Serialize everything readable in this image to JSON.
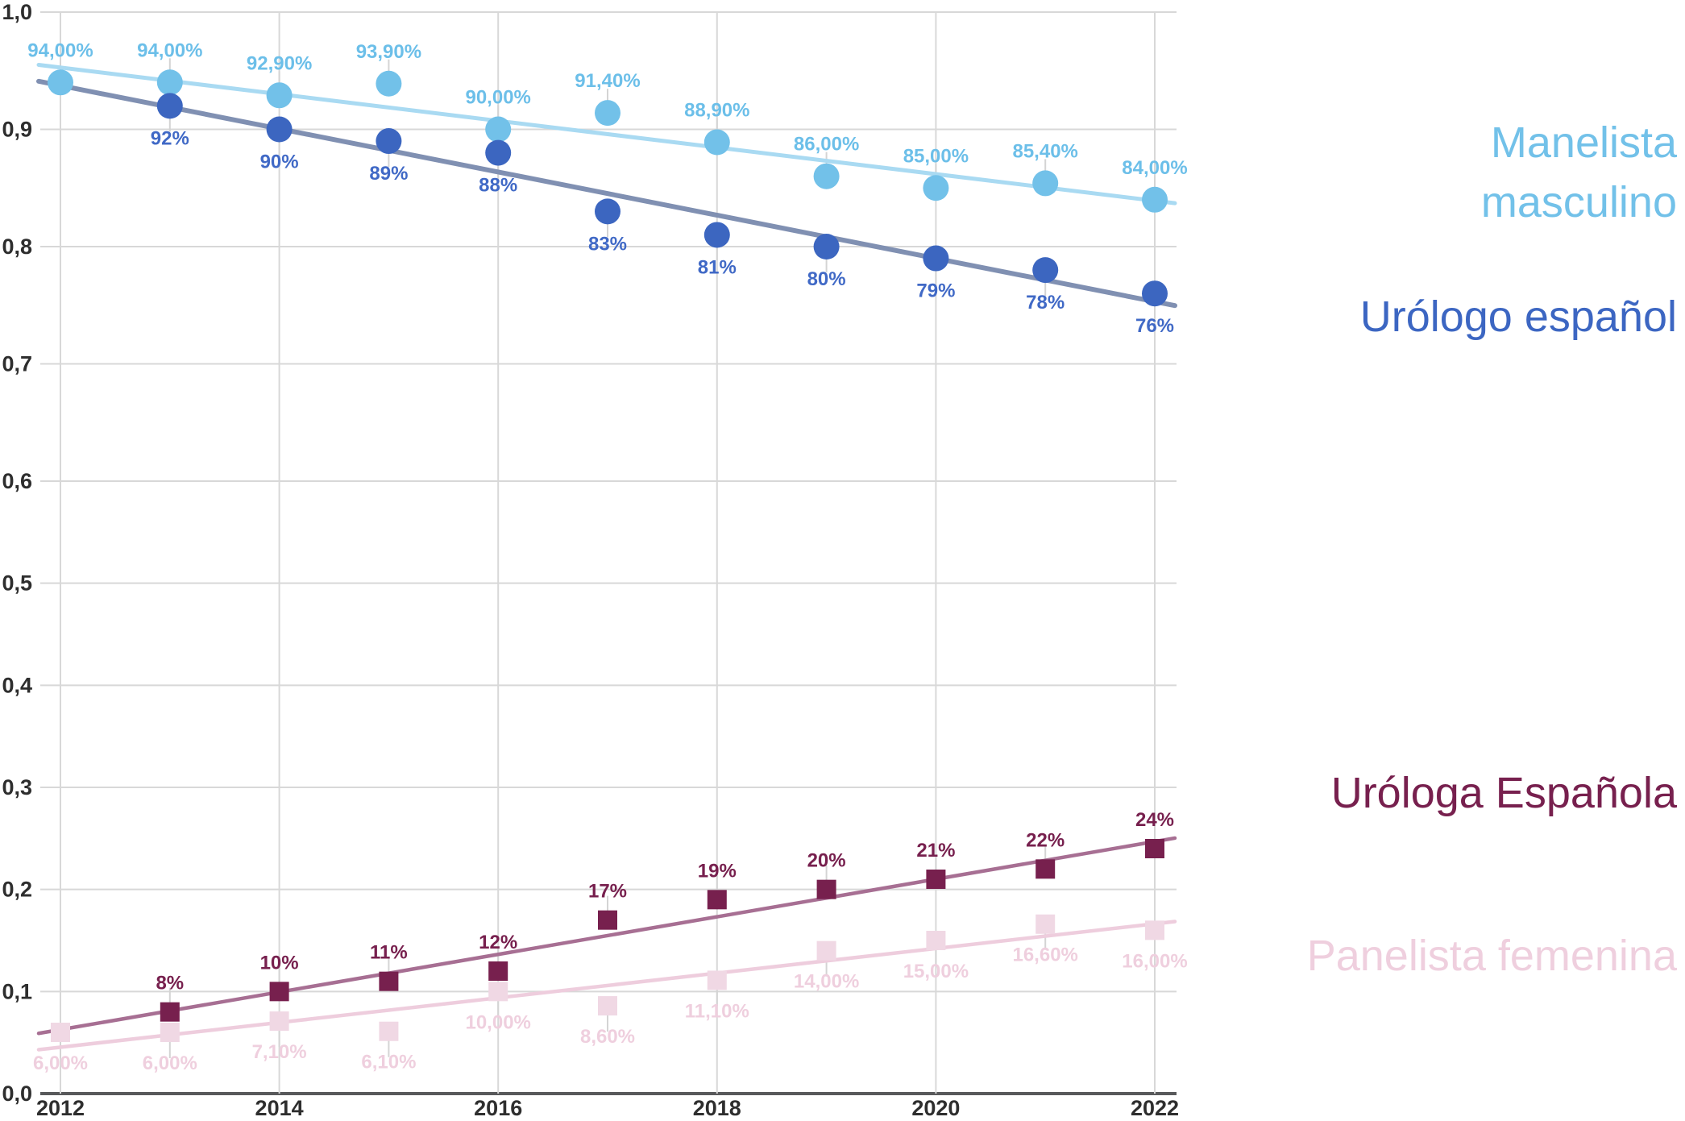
{
  "chart_data": {
    "type": "scatter",
    "title": "",
    "xlabel": "",
    "ylabel": "",
    "x": [
      2012,
      2013,
      2014,
      2015,
      2016,
      2017,
      2018,
      2019,
      2020,
      2021,
      2022
    ],
    "xlim": [
      2011.8,
      2022.2
    ],
    "ylim": [
      0,
      1
    ],
    "grid": true,
    "x_tick_years": [
      2012,
      2014,
      2016,
      2018,
      2020,
      2022
    ],
    "x_tick_labels": [
      "2012",
      "2014",
      "2016",
      "2018",
      "2020",
      "2022"
    ],
    "y_tick_values": [
      0,
      0.1,
      0.2,
      0.3,
      0.4,
      0.5,
      0.6,
      0.7,
      0.8,
      0.9,
      1.0
    ],
    "y_tick_labels": [
      "0,0",
      "0,1",
      "0,2",
      "0,3",
      "0,4",
      "0,5",
      "0,6",
      "0,7",
      "0,8",
      "0,9",
      "1,0"
    ],
    "series": [
      {
        "id": "manelista-masculino",
        "name": "Manelista masculino",
        "marker": "circle",
        "label_position": "above",
        "values_pct": [
          94.0,
          94.0,
          92.9,
          93.9,
          90.0,
          91.4,
          88.9,
          86.0,
          85.0,
          85.4,
          84.0
        ],
        "point_labels": [
          "94,00%",
          "94,00%",
          "92,90%",
          "93,90%",
          "90,00%",
          "91,40%",
          "88,90%",
          "86,00%",
          "85,00%",
          "85,40%",
          "84,00%"
        ],
        "color": "#72c1e9",
        "label_color": "#6cbfe9",
        "trend_color": "#a9daf2",
        "trendline": true
      },
      {
        "id": "urologo-espanol",
        "name": "Urólogo español",
        "marker": "circle",
        "label_position": "below",
        "values_pct": [
          null,
          92,
          90,
          89,
          88,
          83,
          81,
          80,
          79,
          78,
          76
        ],
        "point_labels": [
          null,
          "92%",
          "90%",
          "89%",
          "88%",
          "83%",
          "81%",
          "80%",
          "79%",
          "78%",
          "76%"
        ],
        "color": "#3c66c0",
        "label_color": "#4069c6",
        "trend_color": "#8090b2",
        "trendline": true
      },
      {
        "id": "urologa-espanola",
        "name": "Uróloga Española",
        "marker": "square",
        "label_position": "above",
        "values_pct": [
          null,
          8,
          10,
          11,
          12,
          17,
          19,
          20,
          21,
          22,
          24
        ],
        "point_labels": [
          null,
          "8%",
          "10%",
          "11%",
          "12%",
          "17%",
          "19%",
          "20%",
          "21%",
          "22%",
          "24%"
        ],
        "color": "#77204e",
        "label_color": "#77204e",
        "trend_color": "#a76f93",
        "trendline": true
      },
      {
        "id": "panelista-femenina",
        "name": "Panelista femenina",
        "marker": "square",
        "label_position": "below",
        "values_pct": [
          6.0,
          6.0,
          7.1,
          6.1,
          10.0,
          8.6,
          11.1,
          14.0,
          15.0,
          16.6,
          16.0
        ],
        "point_labels": [
          "6,00%",
          "6,00%",
          "7,10%",
          "6,10%",
          "10,00%",
          "8,60%",
          "11,10%",
          "14,00%",
          "15,00%",
          "16,60%",
          "16,00%"
        ],
        "color": "#f0d8e4",
        "label_color": "#efcfde",
        "trend_color": "#eecddd",
        "trendline": true
      }
    ],
    "legend": [
      {
        "lines": [
          "Manelista",
          "masculino"
        ],
        "color": "#72c1e9"
      },
      {
        "lines": [
          "Urólogo español"
        ],
        "color": "#3c66c2"
      },
      {
        "lines": [
          "Uróloga Española"
        ],
        "color": "#77204e"
      },
      {
        "lines": [
          "Panelista femenina"
        ],
        "color": "#efcfde"
      }
    ],
    "legend_position": "right",
    "colors": {
      "grid": "#d8d8d8",
      "axis_line": "#58595b",
      "tick_text": "#2e2e2e",
      "leader_line": "#d4d4d4",
      "background": "#ffffff"
    }
  }
}
